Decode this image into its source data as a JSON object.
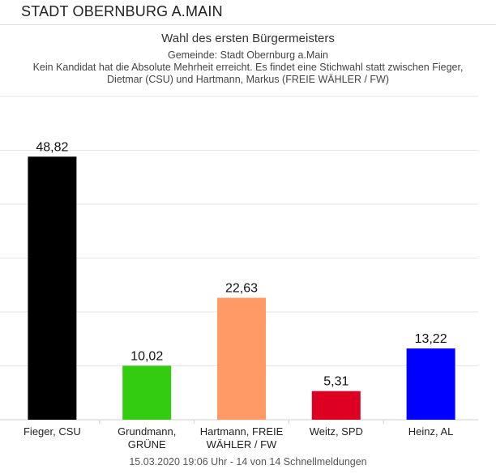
{
  "header": {
    "title": "STADT OBERNBURG A.MAIN"
  },
  "footer": {
    "text": "15.03.2020 19:06 Uhr - 14 von 14 Schnellmeldungen"
  },
  "chart_data": {
    "type": "bar",
    "title": "Wahl des ersten Bürgermeisters",
    "subtitle": [
      "Gemeinde: Stadt Obernburg a.Main",
      "Kein Kandidat hat die Absolute Mehrheit erreicht. Es findet eine Stichwahl statt zwischen Fieger,",
      "Dietmar (CSU) und Hartmann, Markus (FREIE WÄHLER / FW)"
    ],
    "categories": [
      [
        "Fieger, CSU"
      ],
      [
        "Grundmann,",
        "GRÜNE"
      ],
      [
        "Hartmann, FREIE",
        "WÄHLER / FW"
      ],
      [
        "Weitz, SPD"
      ],
      [
        "Heinz, AL"
      ]
    ],
    "values": [
      48.82,
      10.02,
      22.63,
      5.31,
      13.22
    ],
    "value_labels": [
      "48,82",
      "10,02",
      "22,63",
      "5,31",
      "13,22"
    ],
    "colors": [
      "#000000",
      "#33cc11",
      "#ff9966",
      "#dd0022",
      "#0000ff"
    ],
    "xlabel": "",
    "ylabel": "",
    "ylim": [
      0,
      60
    ],
    "grid": true
  }
}
